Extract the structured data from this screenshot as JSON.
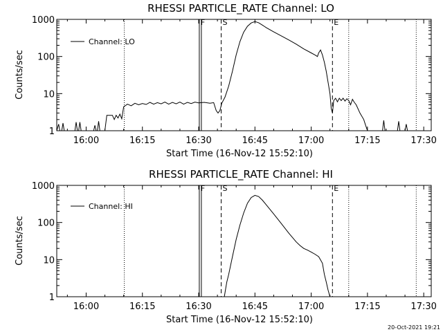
{
  "footer": {
    "date_stamp": "20-Oct-2021 19:21"
  },
  "chart_data": [
    {
      "type": "line",
      "title": "RHESSI PARTICLE_RATE Channel: LO",
      "xlabel": "Start Time (16-Nov-12 15:52:10)",
      "ylabel": "Counts/sec",
      "yscale": "log",
      "xlim": [
        "15:52:10",
        "17:32:00"
      ],
      "ylim": [
        1,
        1000
      ],
      "xticks": [
        "16:00",
        "16:15",
        "16:30",
        "16:45",
        "17:00",
        "17:15",
        "17:30"
      ],
      "yticks": [
        "1",
        "10",
        "100",
        "1000"
      ],
      "legend": {
        "placement": "top-left",
        "entries": [
          "Channel: LO"
        ]
      },
      "markers": [
        {
          "label": "F",
          "time": "16:30:10",
          "style": "solid-double"
        },
        {
          "label": "S",
          "time": "16:36:00",
          "style": "dashed"
        },
        {
          "label": "E",
          "time": "17:05:40",
          "style": "dashed"
        },
        {
          "label": "",
          "time": "16:10:10",
          "style": "dotted"
        },
        {
          "label": "",
          "time": "17:10:00",
          "style": "dotted"
        },
        {
          "label": "",
          "time": "17:28:00",
          "style": "dotted"
        }
      ],
      "series": [
        {
          "name": "Channel: LO",
          "points": [
            [
              "15:52:10",
              1
            ],
            [
              "15:52:40",
              1.5
            ],
            [
              "15:53:00",
              1
            ],
            [
              "15:53:30",
              1
            ],
            [
              "15:53:50",
              1.6
            ],
            [
              "15:54:10",
              1
            ],
            [
              "15:57:00",
              1
            ],
            [
              "15:57:20",
              1.7
            ],
            [
              "15:57:40",
              1
            ],
            [
              "15:58:00",
              1
            ],
            [
              "15:58:20",
              1.7
            ],
            [
              "15:58:40",
              1
            ],
            [
              "16:02:00",
              1
            ],
            [
              "16:02:20",
              1.4
            ],
            [
              "16:02:40",
              1
            ],
            [
              "16:03:00",
              1
            ],
            [
              "16:03:20",
              1.8
            ],
            [
              "16:03:40",
              1
            ],
            [
              "16:05:00",
              1
            ],
            [
              "16:05:30",
              2.6
            ],
            [
              "16:07:00",
              2.6
            ],
            [
              "16:07:30",
              2
            ],
            [
              "16:08:00",
              2.6
            ],
            [
              "16:08:30",
              2.2
            ],
            [
              "16:09:00",
              2.8
            ],
            [
              "16:09:30",
              2.1
            ],
            [
              "16:10:00",
              4.4
            ],
            [
              "16:11:00",
              5.2
            ],
            [
              "16:12:00",
              4.7
            ],
            [
              "16:13:00",
              5.5
            ],
            [
              "16:14:00",
              5
            ],
            [
              "16:15:00",
              5.4
            ],
            [
              "16:16:00",
              5.1
            ],
            [
              "16:17:00",
              5.8
            ],
            [
              "16:18:00",
              5.2
            ],
            [
              "16:19:00",
              5.7
            ],
            [
              "16:20:00",
              5.3
            ],
            [
              "16:21:00",
              5.9
            ],
            [
              "16:22:00",
              5.2
            ],
            [
              "16:23:00",
              5.8
            ],
            [
              "16:24:00",
              5.3
            ],
            [
              "16:25:00",
              5.9
            ],
            [
              "16:26:00",
              5.2
            ],
            [
              "16:27:00",
              5.8
            ],
            [
              "16:28:00",
              5.4
            ],
            [
              "16:29:00",
              5.9
            ],
            [
              "16:30:00",
              5.6
            ],
            [
              "16:31:30",
              5.8
            ],
            [
              "16:33:00",
              5.5
            ],
            [
              "16:34:00",
              5.7
            ],
            [
              "16:34:40",
              3.5
            ],
            [
              "16:35:10",
              3
            ],
            [
              "16:35:40",
              3.5
            ],
            [
              "16:36:10",
              5.5
            ],
            [
              "16:37:00",
              8
            ],
            [
              "16:38:00",
              16
            ],
            [
              "16:39:00",
              40
            ],
            [
              "16:40:00",
              110
            ],
            [
              "16:41:00",
              250
            ],
            [
              "16:42:00",
              450
            ],
            [
              "16:43:00",
              650
            ],
            [
              "16:44:00",
              800
            ],
            [
              "16:45:00",
              870
            ],
            [
              "16:46:00",
              810
            ],
            [
              "16:47:00",
              700
            ],
            [
              "16:48:00",
              600
            ],
            [
              "16:50:00",
              460
            ],
            [
              "16:52:00",
              360
            ],
            [
              "16:54:00",
              280
            ],
            [
              "16:56:00",
              215
            ],
            [
              "16:58:00",
              160
            ],
            [
              "17:00:00",
              125
            ],
            [
              "17:01:00",
              110
            ],
            [
              "17:01:40",
              100
            ],
            [
              "17:02:00",
              125
            ],
            [
              "17:02:30",
              150
            ],
            [
              "17:03:00",
              110
            ],
            [
              "17:03:30",
              70
            ],
            [
              "17:04:00",
              40
            ],
            [
              "17:04:30",
              20
            ],
            [
              "17:05:00",
              10
            ],
            [
              "17:05:20",
              4
            ],
            [
              "17:05:40",
              3
            ],
            [
              "17:06:00",
              6.5
            ],
            [
              "17:06:30",
              7.5
            ],
            [
              "17:07:00",
              6
            ],
            [
              "17:07:30",
              7.5
            ],
            [
              "17:08:00",
              6.5
            ],
            [
              "17:08:30",
              7.5
            ],
            [
              "17:09:00",
              6.3
            ],
            [
              "17:09:30",
              7.3
            ],
            [
              "17:10:00",
              6.5
            ],
            [
              "17:10:30",
              5
            ],
            [
              "17:11:00",
              7
            ],
            [
              "17:11:30",
              5.8
            ],
            [
              "17:12:00",
              5
            ],
            [
              "17:13:00",
              3
            ],
            [
              "17:14:00",
              2
            ],
            [
              "17:14:30",
              1.4
            ],
            [
              "17:15:00",
              1
            ],
            [
              "17:19:00",
              1
            ],
            [
              "17:19:20",
              1.9
            ],
            [
              "17:19:40",
              1
            ],
            [
              "17:23:00",
              1
            ],
            [
              "17:23:20",
              1.8
            ],
            [
              "17:23:40",
              1
            ],
            [
              "17:25:00",
              1
            ],
            [
              "17:25:20",
              1.5
            ],
            [
              "17:25:40",
              1
            ]
          ]
        }
      ]
    },
    {
      "type": "line",
      "title": "RHESSI PARTICLE_RATE Channel: HI",
      "xlabel": "Start Time (16-Nov-12 15:52:10)",
      "ylabel": "Counts/sec",
      "yscale": "log",
      "xlim": [
        "15:52:10",
        "17:32:00"
      ],
      "ylim": [
        1,
        1000
      ],
      "xticks": [
        "16:00",
        "16:15",
        "16:30",
        "16:45",
        "17:00",
        "17:15",
        "17:30"
      ],
      "yticks": [
        "1",
        "10",
        "100",
        "1000"
      ],
      "legend": {
        "placement": "top-left",
        "entries": [
          "Channel: HI"
        ]
      },
      "markers": [
        {
          "label": "F",
          "time": "16:30:10",
          "style": "solid-double"
        },
        {
          "label": "S",
          "time": "16:36:00",
          "style": "dashed"
        },
        {
          "label": "E",
          "time": "17:05:40",
          "style": "dashed"
        },
        {
          "label": "",
          "time": "16:10:10",
          "style": "dotted"
        },
        {
          "label": "",
          "time": "17:10:00",
          "style": "dotted"
        },
        {
          "label": "",
          "time": "17:28:00",
          "style": "dotted"
        }
      ],
      "series": [
        {
          "name": "Channel: HI",
          "points": [
            [
              "16:36:50",
              1
            ],
            [
              "16:37:10",
              1.6
            ],
            [
              "16:37:30",
              2.5
            ],
            [
              "16:38:00",
              4
            ],
            [
              "16:39:00",
              12
            ],
            [
              "16:40:00",
              35
            ],
            [
              "16:41:00",
              85
            ],
            [
              "16:42:00",
              180
            ],
            [
              "16:43:00",
              330
            ],
            [
              "16:44:00",
              470
            ],
            [
              "16:45:00",
              540
            ],
            [
              "16:46:00",
              500
            ],
            [
              "16:47:00",
              400
            ],
            [
              "16:48:00",
              300
            ],
            [
              "16:50:00",
              170
            ],
            [
              "16:52:00",
              95
            ],
            [
              "16:54:00",
              52
            ],
            [
              "16:56:00",
              30
            ],
            [
              "16:57:00",
              24
            ],
            [
              "16:58:00",
              20
            ],
            [
              "16:59:00",
              18
            ],
            [
              "17:00:00",
              16
            ],
            [
              "17:01:00",
              14
            ],
            [
              "17:02:00",
              12
            ],
            [
              "17:03:00",
              8
            ],
            [
              "17:03:30",
              4
            ],
            [
              "17:04:00",
              2.5
            ],
            [
              "17:04:30",
              1.5
            ],
            [
              "17:05:00",
              1
            ]
          ]
        }
      ]
    }
  ]
}
